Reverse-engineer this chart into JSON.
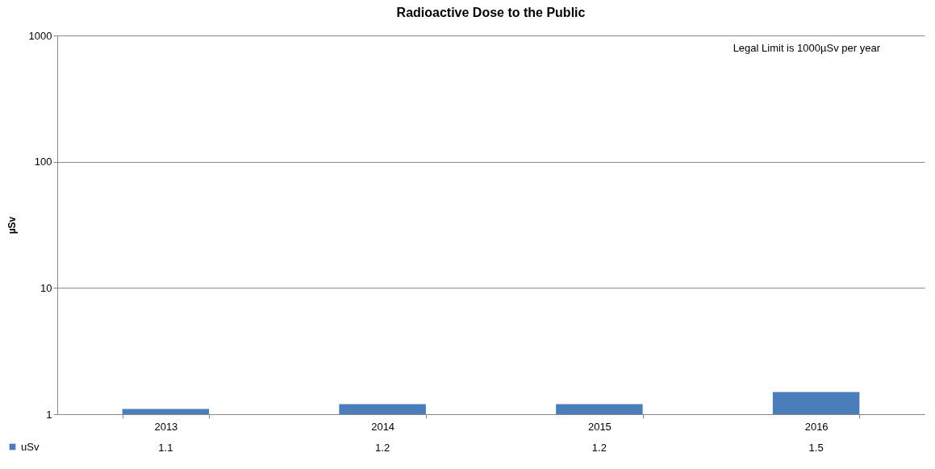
{
  "chart_data": {
    "type": "bar",
    "title": "Radioactive Dose to the Public",
    "ylabel": "µSv",
    "categories": [
      "2013",
      "2014",
      "2015",
      "2016"
    ],
    "series": [
      {
        "name": "uSv",
        "color": "#4a7ebb",
        "values": [
          1.1,
          1.2,
          1.2,
          1.5
        ]
      }
    ],
    "ylim": [
      1,
      1000
    ],
    "yticks": [
      1,
      10,
      100,
      1000
    ],
    "log": true,
    "grid": "y",
    "legend": "bottom left",
    "data_labels": true,
    "annotations": [
      "Legal  Limit is 1000µSv per year"
    ]
  }
}
